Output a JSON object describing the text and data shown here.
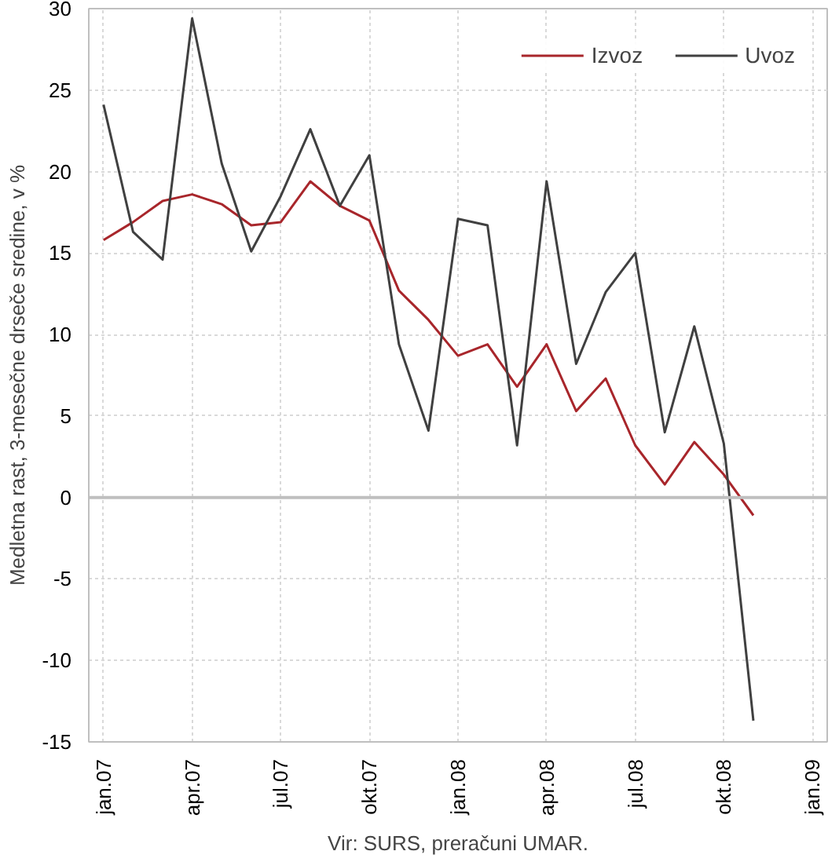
{
  "chart_data": {
    "type": "line",
    "ylabel": "Medletna rast, 3-mesečne drseče sredine, v %",
    "annotations": [
      "Vir: SURS, preračuni UMAR."
    ],
    "categories": [
      "jan.07",
      null,
      null,
      "apr.07",
      null,
      null,
      "jul.07",
      null,
      null,
      "okt.07",
      null,
      null,
      "jan.08",
      null,
      null,
      "apr.08",
      null,
      null,
      "jul.08",
      null,
      null,
      "okt.08",
      null,
      null,
      "jan.09"
    ],
    "series": [
      {
        "name": "Izvoz",
        "color": "#a8262b",
        "values": [
          15.8,
          16.9,
          18.2,
          18.6,
          18.0,
          16.7,
          16.9,
          19.4,
          17.9,
          17.0,
          12.7,
          10.9,
          8.7,
          9.4,
          6.8,
          9.4,
          5.3,
          7.3,
          3.2,
          0.8,
          3.4,
          1.4,
          -1.1,
          null,
          null
        ]
      },
      {
        "name": "Uvoz",
        "color": "#404040",
        "values": [
          24.1,
          16.3,
          14.6,
          29.4,
          20.5,
          15.1,
          18.5,
          22.6,
          17.9,
          21.0,
          9.4,
          4.1,
          17.1,
          16.7,
          3.2,
          19.4,
          8.2,
          12.6,
          15.0,
          4.0,
          10.5,
          3.3,
          -13.7,
          null,
          null
        ]
      }
    ],
    "ylim": [
      -15,
      30
    ],
    "yticks": [
      -15,
      -10,
      -5,
      0,
      5,
      10,
      15,
      20,
      25,
      30
    ],
    "ref_lines": [
      {
        "axis": "y",
        "value": 0,
        "color": "#bfbfbf"
      }
    ],
    "grid": true,
    "legend": "top right",
    "line_style": "solid",
    "marker": "none"
  }
}
